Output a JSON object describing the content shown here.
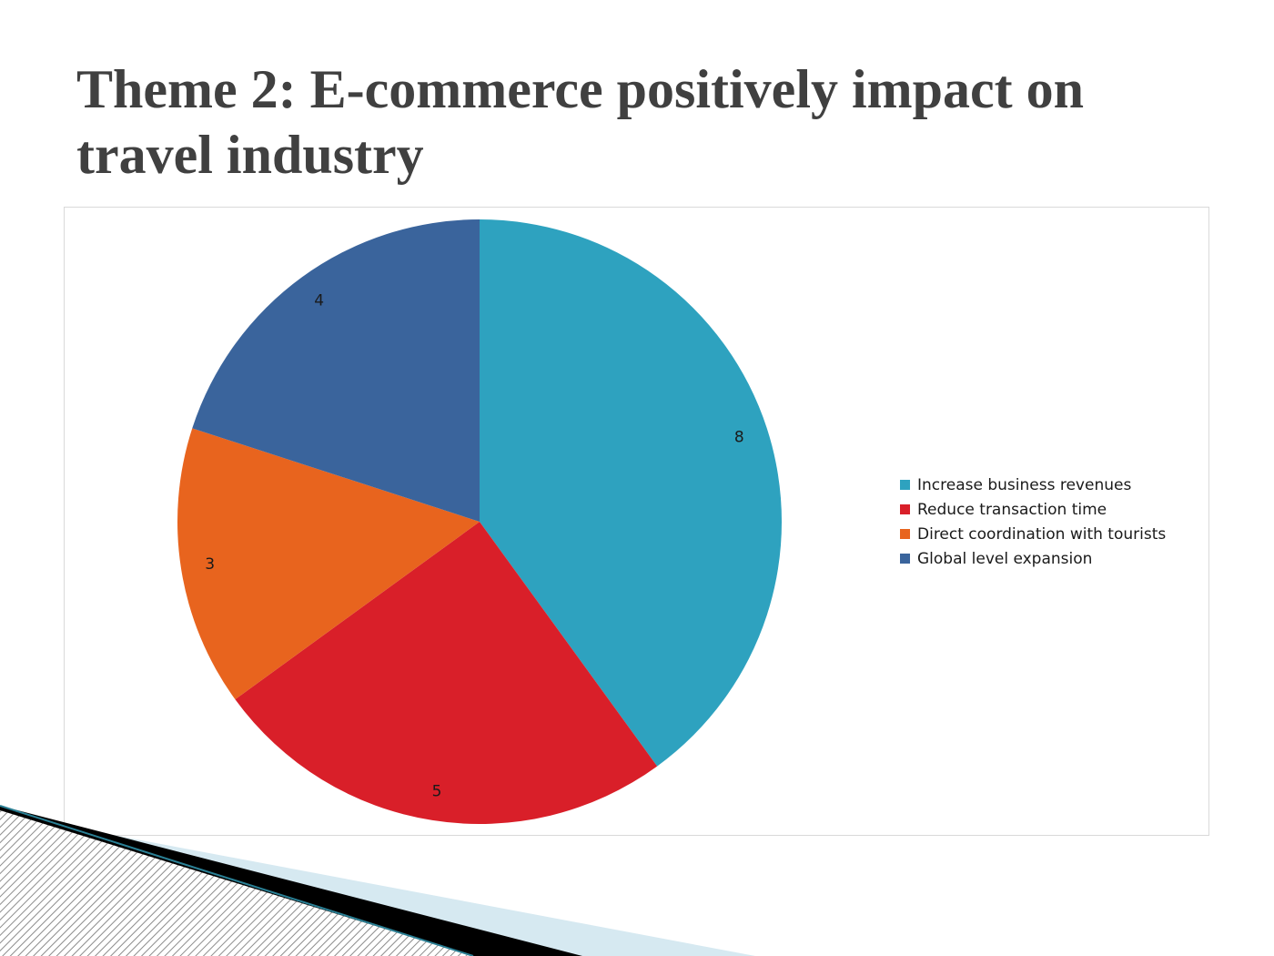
{
  "slide": {
    "title": "Theme 2: E-commerce positively impact on travel industry"
  },
  "chart_data": {
    "type": "pie",
    "title": "",
    "categories": [
      "Increase business revenues",
      "Reduce transaction time",
      "Direct coordination with tourists",
      "Global level expansion"
    ],
    "values": [
      8,
      5,
      3,
      4
    ],
    "data_labels": [
      "8",
      "5",
      "3",
      "4"
    ],
    "colors": [
      "#2ea2bf",
      "#d91f29",
      "#e8641e",
      "#3a649c"
    ],
    "legend_position": "right",
    "start_angle": "top, clockwise"
  }
}
